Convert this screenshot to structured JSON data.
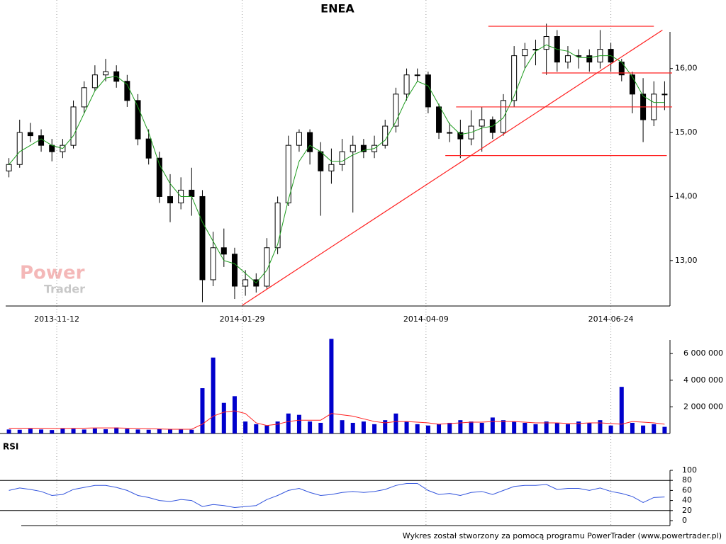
{
  "chart_data": [
    {
      "type": "candlestick",
      "title": "ENEA",
      "open": [
        14.4,
        14.5,
        15.0,
        14.95,
        14.8,
        14.7,
        14.8,
        15.4,
        15.7,
        15.9,
        15.95,
        15.8,
        15.5,
        14.9,
        14.6,
        14.0,
        13.9,
        14.1,
        14.0,
        12.7,
        13.2,
        13.1,
        12.6,
        12.7,
        12.6,
        13.2,
        13.9,
        14.8,
        15.0,
        14.7,
        14.4,
        14.5,
        14.7,
        14.8,
        14.7,
        14.8,
        15.1,
        15.6,
        15.9,
        15.9,
        15.4,
        15.0,
        15.0,
        14.9,
        15.1,
        15.2,
        15.0,
        15.5,
        16.2,
        16.3,
        16.3,
        16.5,
        16.1,
        16.2,
        16.2,
        16.1,
        16.3,
        16.1,
        15.9,
        15.6,
        15.2,
        15.6
      ],
      "high": [
        14.6,
        15.2,
        15.15,
        15.05,
        14.9,
        14.9,
        15.5,
        15.8,
        16.05,
        16.15,
        16.05,
        15.9,
        15.6,
        15.05,
        14.7,
        14.35,
        14.3,
        14.45,
        14.1,
        13.45,
        13.5,
        13.2,
        12.85,
        12.8,
        13.35,
        14.0,
        14.95,
        15.05,
        15.05,
        14.85,
        14.75,
        14.9,
        14.95,
        14.9,
        14.95,
        15.2,
        15.7,
        16.0,
        16.0,
        15.95,
        15.45,
        15.15,
        15.2,
        15.35,
        15.4,
        15.25,
        15.6,
        16.35,
        16.4,
        16.45,
        16.7,
        16.6,
        16.35,
        16.3,
        16.3,
        16.6,
        16.4,
        16.15,
        15.95,
        15.85,
        15.8,
        15.8
      ],
      "low": [
        14.3,
        14.45,
        14.85,
        14.7,
        14.55,
        14.6,
        14.75,
        15.3,
        15.65,
        15.8,
        15.7,
        15.4,
        14.8,
        14.5,
        13.9,
        13.6,
        13.8,
        13.7,
        12.35,
        12.6,
        12.9,
        12.4,
        12.45,
        12.5,
        12.55,
        13.1,
        13.85,
        14.7,
        14.5,
        13.7,
        14.2,
        14.4,
        13.75,
        14.6,
        14.6,
        14.75,
        15.0,
        15.5,
        15.8,
        15.3,
        14.9,
        14.85,
        14.6,
        14.8,
        14.7,
        14.9,
        14.95,
        15.4,
        16.0,
        16.05,
        15.9,
        15.95,
        16.0,
        16.0,
        15.95,
        16.0,
        15.95,
        15.8,
        15.3,
        14.85,
        15.1,
        15.35
      ],
      "close": [
        14.5,
        15.0,
        14.95,
        14.8,
        14.7,
        14.8,
        15.4,
        15.7,
        15.9,
        15.95,
        15.8,
        15.5,
        14.9,
        14.6,
        14.0,
        13.9,
        14.1,
        14.0,
        12.7,
        13.2,
        13.1,
        12.6,
        12.7,
        12.6,
        13.2,
        13.9,
        14.8,
        15.0,
        14.7,
        14.4,
        14.5,
        14.7,
        14.8,
        14.7,
        14.8,
        15.1,
        15.6,
        15.9,
        15.9,
        15.4,
        15.0,
        15.0,
        14.9,
        15.1,
        15.2,
        15.0,
        15.5,
        16.2,
        16.3,
        16.3,
        16.5,
        16.1,
        16.2,
        16.2,
        16.1,
        16.3,
        16.1,
        15.9,
        15.6,
        15.2,
        15.6,
        15.6
      ],
      "ma": {
        "color": "#1a9a1a",
        "values": [
          14.5,
          14.7,
          14.8,
          14.9,
          14.8,
          14.75,
          14.95,
          15.3,
          15.65,
          15.85,
          15.88,
          15.75,
          15.4,
          15.0,
          14.5,
          14.2,
          14.0,
          14.0,
          13.6,
          13.3,
          13.0,
          12.95,
          12.8,
          12.65,
          12.85,
          13.25,
          13.95,
          14.55,
          14.8,
          14.7,
          14.55,
          14.55,
          14.65,
          14.72,
          14.75,
          14.88,
          15.17,
          15.53,
          15.8,
          15.73,
          15.43,
          15.13,
          14.97,
          15.0,
          15.07,
          15.1,
          15.23,
          15.57,
          16.0,
          16.27,
          16.37,
          16.3,
          16.27,
          16.17,
          16.17,
          16.2,
          16.2,
          16.1,
          15.87,
          15.57,
          15.47,
          15.47
        ]
      },
      "lines": [
        {
          "color": "#ff2020",
          "x": [
            21.7,
            60.8
          ],
          "y": [
            12.3,
            16.6
          ]
        },
        {
          "color": "#ff2020",
          "x": [
            44.6,
            60.0
          ],
          "y": [
            16.66,
            16.66
          ]
        },
        {
          "color": "#ff2020",
          "x": [
            49.6,
            61.7
          ],
          "y": [
            15.93,
            15.93
          ]
        },
        {
          "color": "#ff2020",
          "x": [
            41.6,
            61.7
          ],
          "y": [
            15.4,
            15.4
          ]
        },
        {
          "color": "#ff2020",
          "x": [
            40.6,
            61.2
          ],
          "y": [
            14.64,
            14.64
          ]
        }
      ],
      "xlim": [
        -0.5,
        61.5
      ],
      "xticks": [
        {
          "value": 4.45,
          "label": "2013-11-12"
        },
        {
          "value": 21.7,
          "label": "2014-01-29"
        },
        {
          "value": 38.8,
          "label": "2014-04-09"
        },
        {
          "value": 56.0,
          "label": "2014-06-24"
        }
      ],
      "ylim": [
        12.29,
        17.07
      ],
      "yticks": [
        {
          "value": 13,
          "label": "13,00"
        },
        {
          "value": 14,
          "label": "14,00"
        },
        {
          "value": 15,
          "label": "15,00"
        },
        {
          "value": 16,
          "label": "16,00"
        }
      ],
      "grid": true
    },
    {
      "type": "bar",
      "color": "#0000cc",
      "values": [
        300000,
        280000,
        350000,
        300000,
        260000,
        400000,
        350000,
        300000,
        380000,
        320000,
        450000,
        350000,
        300000,
        280000,
        320000,
        300000,
        330000,
        280000,
        3400000,
        5700000,
        2300000,
        2800000,
        900000,
        700000,
        600000,
        900000,
        1500000,
        1400000,
        900000,
        800000,
        7100000,
        1000000,
        800000,
        900000,
        700000,
        1000000,
        1500000,
        900000,
        700000,
        600000,
        700000,
        800000,
        1000000,
        900000,
        800000,
        1200000,
        1000000,
        900000,
        800000,
        700000,
        900000,
        800000,
        700000,
        900000,
        800000,
        1000000,
        600000,
        3500000,
        800000,
        600000,
        700000,
        500000
      ],
      "ma": {
        "color": "#ff2020",
        "values": [
          400000,
          400000,
          400000,
          400000,
          380000,
          380000,
          400000,
          400000,
          420000,
          420000,
          420000,
          400000,
          380000,
          360000,
          340000,
          320000,
          320000,
          320000,
          700000,
          1300000,
          1600000,
          1700000,
          1500000,
          800000,
          600000,
          700000,
          900000,
          1000000,
          1000000,
          1000000,
          1500000,
          1400000,
          1300000,
          1100000,
          900000,
          800000,
          900000,
          900000,
          850000,
          800000,
          700000,
          750000,
          800000,
          850000,
          850000,
          900000,
          900000,
          900000,
          850000,
          800000,
          800000,
          800000,
          750000,
          750000,
          800000,
          800000,
          750000,
          700000,
          900000,
          850000,
          800000,
          700000
        ]
      },
      "ylim": [
        0,
        8080000
      ],
      "yticks": [
        {
          "value": 2000000,
          "label": "2 000 000"
        },
        {
          "value": 4000000,
          "label": "4 000 000"
        },
        {
          "value": 6000000,
          "label": "6 000 000"
        }
      ]
    },
    {
      "type": "line",
      "title": "RSI",
      "color": "#3355dd",
      "values": [
        60,
        65,
        62,
        58,
        50,
        52,
        62,
        66,
        70,
        70,
        66,
        60,
        50,
        46,
        40,
        38,
        42,
        40,
        28,
        32,
        30,
        26,
        28,
        30,
        42,
        50,
        60,
        64,
        56,
        50,
        52,
        56,
        58,
        56,
        58,
        62,
        70,
        74,
        74,
        60,
        52,
        54,
        50,
        56,
        58,
        52,
        60,
        68,
        70,
        70,
        72,
        62,
        64,
        64,
        60,
        65,
        58,
        54,
        48,
        36,
        46,
        47
      ],
      "levels": [
        20,
        80
      ],
      "ylim": [
        0,
        100
      ],
      "yticks": [
        0,
        20,
        40,
        60,
        80,
        100
      ]
    }
  ],
  "watermark": [
    "Power",
    "Trader"
  ],
  "footer": "Wykres został stworzony za pomocą programu PowerTrader (www.powertrader.pl)"
}
